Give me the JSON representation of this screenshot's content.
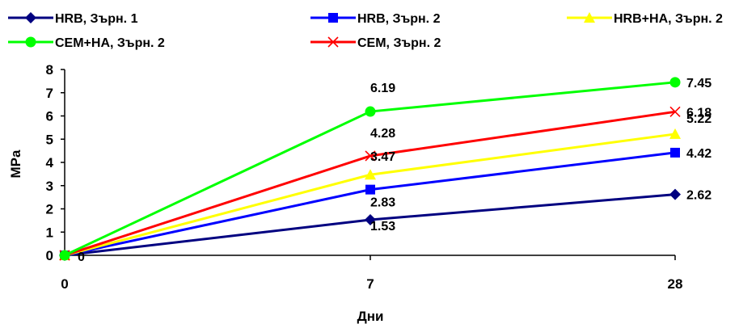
{
  "chart_data": {
    "type": "line",
    "title": "",
    "xlabel": "Дни",
    "ylabel": "MPa",
    "categories": [
      "0",
      "7",
      "28"
    ],
    "ylim": [
      0,
      8
    ],
    "yticks": [
      "0",
      "1",
      "2",
      "3",
      "4",
      "5",
      "6",
      "7",
      "8"
    ],
    "grid": false,
    "legend_position": "top",
    "series": [
      {
        "name": "HRB, Зърн. 1",
        "values": [
          0,
          1.53,
          2.62
        ],
        "labels": [
          "0",
          "1.53",
          "2.62"
        ],
        "color": "#000080",
        "marker": "diamond"
      },
      {
        "name": "HRB, Зърн. 2",
        "values": [
          0,
          2.83,
          4.42
        ],
        "labels": [
          "",
          "2.83",
          "4.42"
        ],
        "color": "#0000ff",
        "marker": "square"
      },
      {
        "name": "HRB+HA, Зърн. 2",
        "values": [
          0,
          3.47,
          5.22
        ],
        "labels": [
          "",
          "3.47",
          "5.22"
        ],
        "color": "#ffff00",
        "marker": "triangle"
      },
      {
        "name": "CEM+HA, Зърн. 2",
        "values": [
          0,
          6.19,
          7.45
        ],
        "labels": [
          "",
          "6.19",
          "7.45"
        ],
        "color": "#00ff00",
        "marker": "circle"
      },
      {
        "name": "CEM, Зърн. 2",
        "values": [
          0,
          4.28,
          6.18
        ],
        "labels": [
          "",
          "4.28",
          "6.18"
        ],
        "color": "#ff0000",
        "marker": "x"
      }
    ]
  }
}
